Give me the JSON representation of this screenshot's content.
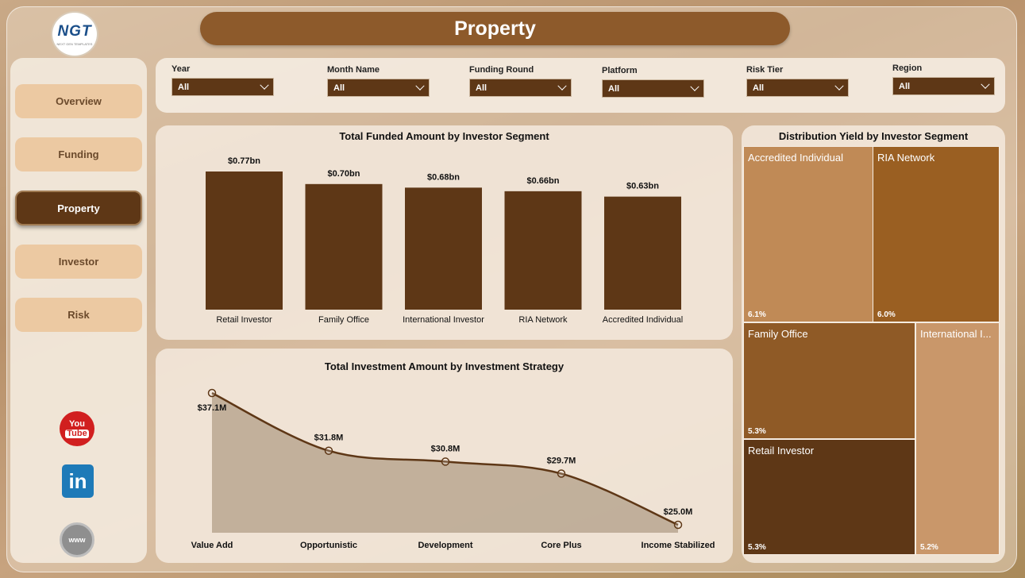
{
  "header": {
    "title": "Property",
    "logo_text": "NGT",
    "logo_sub": "NEXT GEN TEMPLATES"
  },
  "sidebar": {
    "items": [
      {
        "label": "Overview",
        "active": false
      },
      {
        "label": "Funding",
        "active": false
      },
      {
        "label": "Property",
        "active": true
      },
      {
        "label": "Investor",
        "active": false
      },
      {
        "label": "Risk",
        "active": false
      }
    ],
    "social": [
      {
        "icon": "youtube-icon",
        "label_top": "You",
        "label_bottom": "Tube"
      },
      {
        "icon": "linkedin-icon",
        "label": "in"
      },
      {
        "icon": "globe-icon",
        "label": "www"
      }
    ]
  },
  "filters": [
    {
      "label": "Year",
      "value": "All"
    },
    {
      "label": "Month Name",
      "value": "All"
    },
    {
      "label": "Funding Round",
      "value": "All"
    },
    {
      "label": "Platform",
      "value": "All"
    },
    {
      "label": "Risk Tier",
      "value": "All"
    },
    {
      "label": "Region",
      "value": "All"
    }
  ],
  "colors": {
    "accent": "#5e3716",
    "title_bar": "#8d5a2b",
    "nav_idle": "#ecc9a2"
  },
  "chart_data": [
    {
      "type": "bar",
      "title": "Total Funded Amount by Investor Segment",
      "categories": [
        "Retail Investor",
        "Family Office",
        "International Investor",
        "RIA Network",
        "Accredited Individual"
      ],
      "values": [
        0.77,
        0.7,
        0.68,
        0.66,
        0.63
      ],
      "data_labels": [
        "$0.77bn",
        "$0.70bn",
        "$0.68bn",
        "$0.66bn",
        "$0.63bn"
      ],
      "unit": "bn",
      "color": "#5e3716"
    },
    {
      "type": "area",
      "title": "Total Investment Amount by Investment Strategy",
      "categories": [
        "Value Add",
        "Opportunistic",
        "Development",
        "Core Plus",
        "Income Stabilized"
      ],
      "values": [
        37.1,
        31.8,
        30.8,
        29.7,
        25.0
      ],
      "data_labels": [
        "$37.1M",
        "$31.8M",
        "$30.8M",
        "$29.7M",
        "$25.0M"
      ],
      "unit": "M",
      "color": "#5e3716"
    },
    {
      "type": "treemap",
      "title": "Distribution Yield by Investor Segment",
      "items": [
        {
          "name": "Accredited Individual",
          "value": 6.1,
          "label": "6.1%",
          "color": "#c08a56"
        },
        {
          "name": "RIA Network",
          "value": 6.0,
          "label": "6.0%",
          "color": "#9a5f22"
        },
        {
          "name": "Family Office",
          "value": 5.3,
          "label": "5.3%",
          "color": "#8f5a26"
        },
        {
          "name": "International I...",
          "value": 5.2,
          "label": "5.2%",
          "color": "#c9976a"
        },
        {
          "name": "Retail Investor",
          "value": 5.3,
          "label": "5.3%",
          "color": "#5e3716"
        }
      ]
    }
  ]
}
